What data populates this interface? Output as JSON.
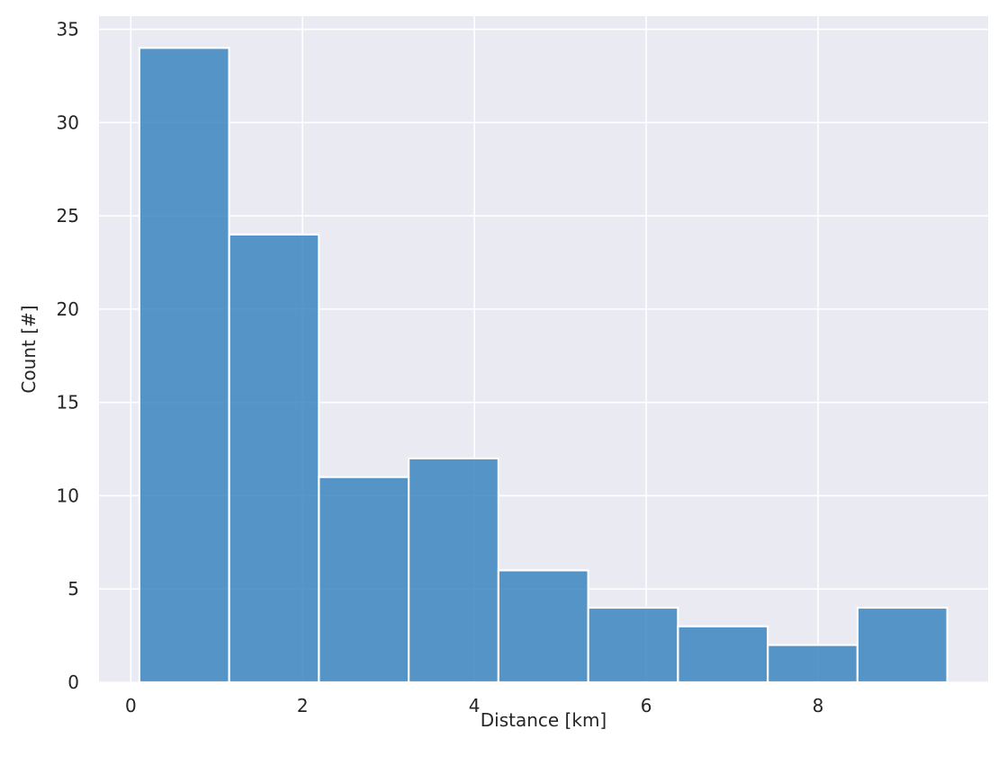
{
  "chart_data": {
    "type": "bar",
    "title": "",
    "xlabel": "Distance [km]",
    "ylabel": "Count [#]",
    "bin_edges": [
      0.1,
      1.145,
      2.19,
      3.235,
      4.28,
      5.325,
      6.37,
      7.415,
      8.46,
      9.505
    ],
    "values": [
      34,
      24,
      11,
      12,
      6,
      4,
      3,
      2,
      4
    ],
    "xlim": [
      -0.37,
      9.98
    ],
    "ylim": [
      0,
      35.7
    ],
    "x_ticks": [
      0,
      2,
      4,
      6,
      8
    ],
    "y_ticks": [
      0,
      5,
      10,
      15,
      20,
      25,
      30,
      35
    ],
    "grid": true,
    "colors": {
      "bar": "#3a85bf",
      "bar_edge": "#ffffff",
      "plot_bg": "#eaeaf2",
      "grid": "#ffffff",
      "text": "#262626"
    }
  }
}
